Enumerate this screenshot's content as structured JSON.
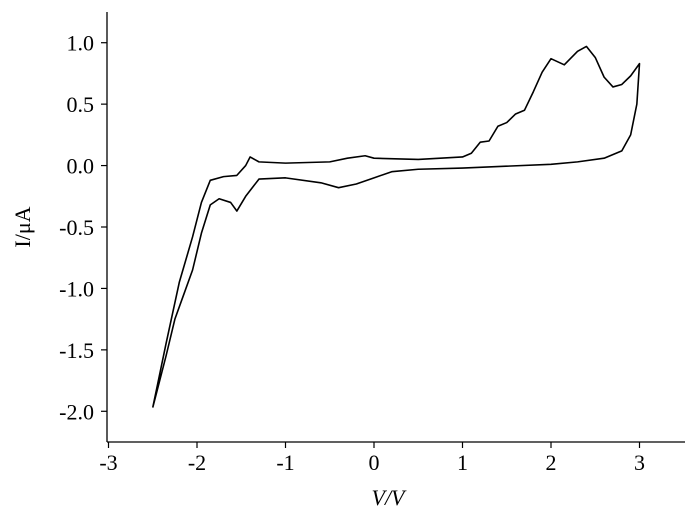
{
  "chart_data": {
    "type": "line",
    "xlabel": "V/V",
    "ylabel": "I/μA",
    "x": [
      -2.5,
      -2.35,
      -2.2,
      -2.05,
      -1.95,
      -1.85,
      -1.7,
      -1.55,
      -1.45,
      -1.4,
      -1.3,
      -1.0,
      -0.5,
      -0.3,
      -0.1,
      0,
      0.5,
      1.0,
      1.1,
      1.2,
      1.3,
      1.4,
      1.5,
      1.6,
      1.7,
      1.8,
      1.9,
      2.0,
      2.15,
      2.3,
      2.4,
      2.5,
      2.6,
      2.7,
      2.8,
      2.9,
      3.0,
      2.97,
      2.9,
      2.8,
      2.6,
      2.3,
      2.0,
      1.0,
      0.5,
      0.2,
      0,
      -0.2,
      -0.4,
      -0.6,
      -1.0,
      -1.3,
      -1.45,
      -1.55,
      -1.62,
      -1.75,
      -1.85,
      -1.95,
      -2.05,
      -2.15,
      -2.25,
      -2.35,
      -2.5
    ],
    "series": [
      {
        "color": "#000000",
        "values": [
          -1.97,
          -1.45,
          -0.95,
          -0.58,
          -0.3,
          -0.12,
          -0.09,
          -0.08,
          0.0,
          0.07,
          0.03,
          0.02,
          0.03,
          0.06,
          0.08,
          0.06,
          0.05,
          0.07,
          0.1,
          0.19,
          0.2,
          0.32,
          0.35,
          0.42,
          0.45,
          0.6,
          0.76,
          0.87,
          0.82,
          0.93,
          0.97,
          0.88,
          0.72,
          0.64,
          0.66,
          0.73,
          0.83,
          0.5,
          0.25,
          0.12,
          0.06,
          0.03,
          0.01,
          -0.02,
          -0.03,
          -0.05,
          -0.1,
          -0.15,
          -0.18,
          -0.14,
          -0.1,
          -0.11,
          -0.25,
          -0.37,
          -0.3,
          -0.27,
          -0.32,
          -0.55,
          -0.85,
          -1.05,
          -1.25,
          -1.55,
          -1.97
        ]
      }
    ],
    "xlim": [
      -3,
      3.5
    ],
    "ylim": [
      -2.25,
      1.25
    ],
    "xticks": [
      -3,
      -2,
      -1,
      0,
      1,
      2,
      3
    ],
    "yticks": [
      {
        "value": 1.0,
        "label": "1.0"
      },
      {
        "value": 0.5,
        "label": "0.5"
      },
      {
        "value": 0.0,
        "label": "0.0"
      },
      {
        "value": -0.5,
        "label": "-0.5"
      },
      {
        "value": -1.0,
        "label": "-1.0"
      },
      {
        "value": -1.5,
        "label": "-1.5"
      },
      {
        "value": -2.0,
        "label": "-2.0"
      }
    ]
  }
}
